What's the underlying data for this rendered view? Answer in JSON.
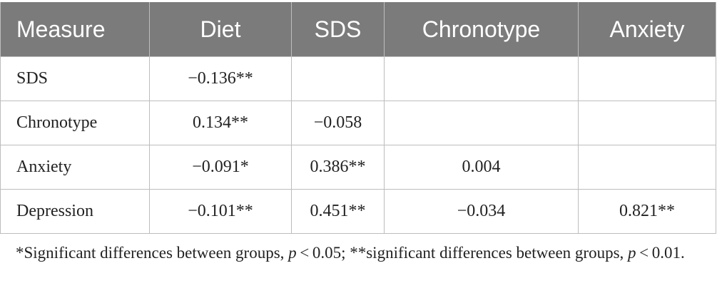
{
  "table": {
    "headers": [
      "Measure",
      "Diet",
      "SDS",
      "Chronotype",
      "Anxiety"
    ],
    "rows": [
      {
        "label": "SDS",
        "cells": [
          "−0.136**",
          "",
          "",
          ""
        ]
      },
      {
        "label": "Chronotype",
        "cells": [
          "0.134**",
          "−0.058",
          "",
          ""
        ]
      },
      {
        "label": "Anxiety",
        "cells": [
          "−0.091*",
          "0.386**",
          "0.004",
          ""
        ]
      },
      {
        "label": "Depression",
        "cells": [
          "−0.101**",
          "0.451**",
          "−0.034",
          "0.821**"
        ]
      }
    ]
  },
  "footnote": {
    "part1": "*Significant differences between groups, ",
    "p1": "p",
    "part2": " < 0.05; **significant differences between groups, ",
    "p2": "p",
    "part3": " < 0.01."
  }
}
